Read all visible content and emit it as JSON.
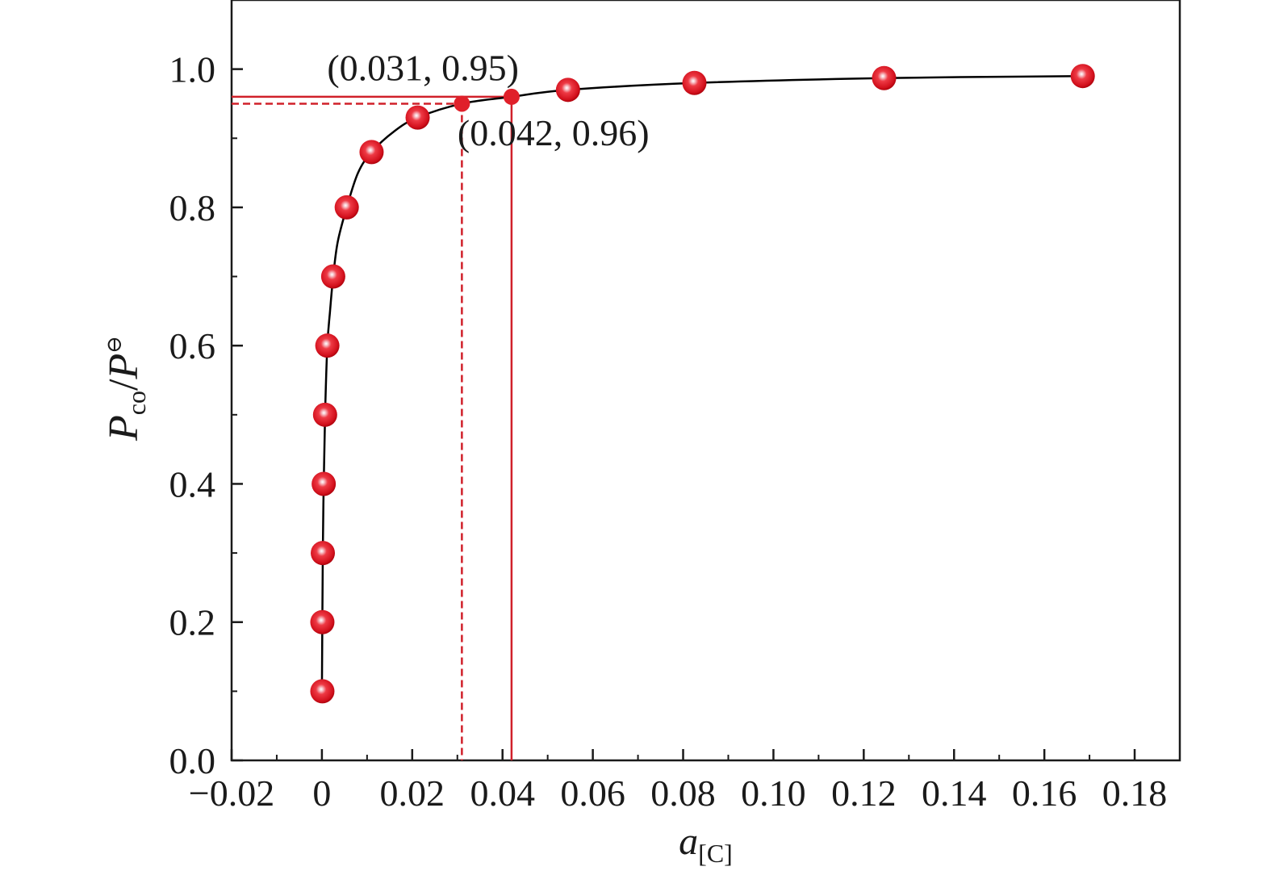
{
  "chart_data": {
    "type": "scatter",
    "xlim": [
      -0.02,
      0.19
    ],
    "ylim": [
      0.0,
      1.1
    ],
    "x_ticks": [
      -0.02,
      0,
      0.02,
      0.04,
      0.06,
      0.08,
      0.1,
      0.12,
      0.14,
      0.16,
      0.18
    ],
    "x_tick_labels": [
      "−0.02",
      "0",
      "0.02",
      "0.04",
      "0.06",
      "0.08",
      "0.10",
      "0.12",
      "0.14",
      "0.16",
      "0.18"
    ],
    "y_ticks": [
      0.0,
      0.2,
      0.4,
      0.6,
      0.8,
      1.0
    ],
    "y_tick_labels": [
      "0.0",
      "0.2",
      "0.4",
      "0.6",
      "0.8",
      "1.0"
    ],
    "xlabel": {
      "main": "a",
      "sub": "[C]"
    },
    "ylabel": {
      "main": "P",
      "sub": "co",
      "sep": "/",
      "main2": "P",
      "sup": "⊖"
    },
    "grid": false,
    "series": [
      {
        "color": "#e8202a",
        "x": [
          0.0001,
          0.0001,
          0.0002,
          0.0004,
          0.0007,
          0.0012,
          0.0025,
          0.0055,
          0.011,
          0.0212,
          0.0545,
          0.0825,
          0.1245,
          0.1685
        ],
        "y": [
          0.1,
          0.2,
          0.3,
          0.4,
          0.5,
          0.6,
          0.7,
          0.8,
          0.88,
          0.93,
          0.97,
          0.98,
          0.987,
          0.99
        ]
      }
    ],
    "fit_curve": {
      "color": "#000000",
      "x": [
        0.0,
        0.0002,
        0.0004,
        0.0007,
        0.0012,
        0.0018,
        0.0025,
        0.0035,
        0.0055,
        0.008,
        0.011,
        0.016,
        0.0212,
        0.031,
        0.042,
        0.0545,
        0.0825,
        0.1245,
        0.1685
      ],
      "y": [
        0.1,
        0.3,
        0.4,
        0.5,
        0.6,
        0.65,
        0.7,
        0.75,
        0.8,
        0.85,
        0.88,
        0.91,
        0.93,
        0.95,
        0.96,
        0.97,
        0.98,
        0.987,
        0.99
      ]
    },
    "annotations": [
      {
        "x": 0.031,
        "y": 0.95,
        "text": "(0.031, 0.95)",
        "style": "dashed",
        "color": "#d0202a"
      },
      {
        "x": 0.042,
        "y": 0.96,
        "text": "(0.042, 0.96)",
        "style": "solid",
        "color": "#d0202a"
      }
    ]
  }
}
